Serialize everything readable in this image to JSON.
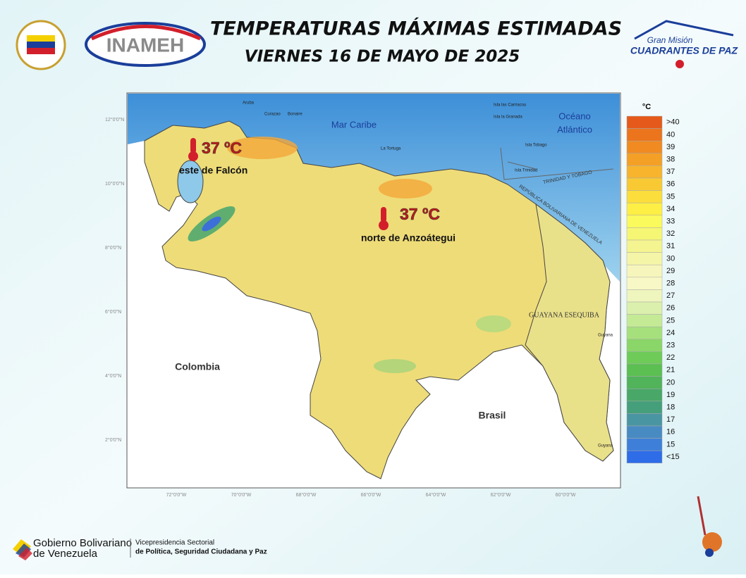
{
  "header": {
    "title": "TEMPERATURAS MÁXIMAS ESTIMADAS",
    "date": "VIERNES 16 DE MAYO DE 2025"
  },
  "logos": {
    "inameh": "INAMEH",
    "gran_mision": "Gran Misión",
    "cuadrantes": "CUADRANTES DE PAZ"
  },
  "map": {
    "labels": [
      "Mar Caribe",
      "Océano",
      "Atlántico",
      "Colombia",
      "Brasil",
      "GUAYANA ESEQUIBA",
      "TRINIDAD Y TOBAGO",
      "REPÚBLICA BOLIVARIANA DE VENEZUELA",
      "Aruba",
      "Curazao",
      "Bonaire",
      "La Tortuga",
      "Isla las Carriacou",
      "Isla la Granada",
      "Isla Tobago",
      "Isla Trinidad",
      "Guyana",
      "Guyana"
    ],
    "lat_labels": [
      "12°0'0\"N",
      "10°0'0\"N",
      "8°0'0\"N",
      "6°0'0\"N",
      "4°0'0\"N",
      "2°0'0\"N"
    ],
    "lon_labels": [
      "72°0'0\"W",
      "70°0'0\"W",
      "68°0'0\"W",
      "66°0'0\"W",
      "64°0'0\"W",
      "62°0'0\"W",
      "60°0'0\"W"
    ]
  },
  "annotations": [
    {
      "temp": "37 ºC",
      "place": "este de Falcón"
    },
    {
      "temp": "37 ºC",
      "place": "norte de Anzoátegui"
    }
  ],
  "legend": {
    "unit": "°C",
    "items": [
      {
        "label": ">40",
        "color": "#e55a1a"
      },
      {
        "label": "40",
        "color": "#ec741d"
      },
      {
        "label": "39",
        "color": "#f08a21"
      },
      {
        "label": "38",
        "color": "#f4a026"
      },
      {
        "label": "37",
        "color": "#f7b42c"
      },
      {
        "label": "36",
        "color": "#f9c933"
      },
      {
        "label": "35",
        "color": "#fbdd3b"
      },
      {
        "label": "34",
        "color": "#fdef45"
      },
      {
        "label": "33",
        "color": "#fafa5c"
      },
      {
        "label": "32",
        "color": "#f6f675"
      },
      {
        "label": "31",
        "color": "#f4f490"
      },
      {
        "label": "30",
        "color": "#f5f5a8"
      },
      {
        "label": "29",
        "color": "#f6f6bc"
      },
      {
        "label": "28",
        "color": "#f8f8c6"
      },
      {
        "label": "27",
        "color": "#eef5bd"
      },
      {
        "label": "26",
        "color": "#dbf0ac"
      },
      {
        "label": "25",
        "color": "#c4ea96"
      },
      {
        "label": "24",
        "color": "#a6e07c"
      },
      {
        "label": "23",
        "color": "#8ad668"
      },
      {
        "label": "22",
        "color": "#6ecb58"
      },
      {
        "label": "21",
        "color": "#5bbf52"
      },
      {
        "label": "20",
        "color": "#51b35a"
      },
      {
        "label": "19",
        "color": "#49a767"
      },
      {
        "label": "18",
        "color": "#459f7b"
      },
      {
        "label": "17",
        "color": "#4a95a2"
      },
      {
        "label": "16",
        "color": "#488bc2"
      },
      {
        "label": "15",
        "color": "#3e80d9"
      },
      {
        "label": "<15",
        "color": "#2e6ce8"
      }
    ]
  },
  "footer": {
    "gobierno": "Gobierno Bolivariano",
    "venezuela": "de Venezuela",
    "vice1": "Vicepresidencia Sectorial",
    "vice2": "de Política, Seguridad Ciudadana y Paz"
  }
}
